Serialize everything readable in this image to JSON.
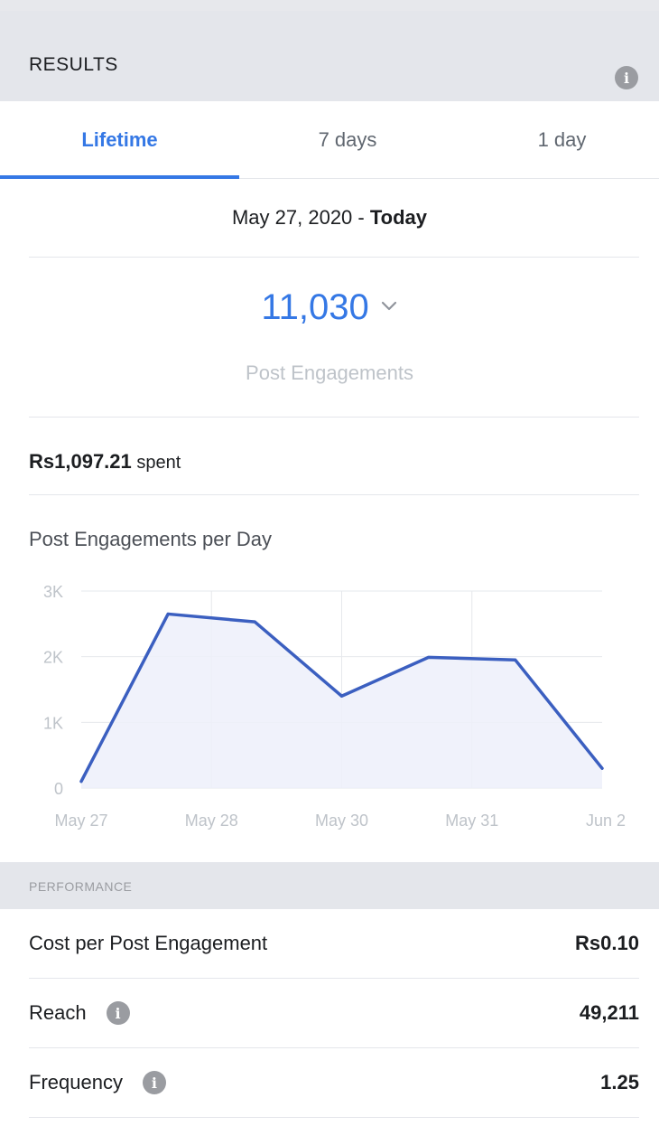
{
  "header": {
    "title": "RESULTS",
    "info_icon": "info-icon"
  },
  "tabs": [
    {
      "label": "Lifetime",
      "active": true
    },
    {
      "label": "7 days",
      "active": false
    },
    {
      "label": "1 day",
      "active": false
    }
  ],
  "date_range": {
    "start": "May 27, 2020",
    "separator": " - ",
    "end": "Today"
  },
  "metric": {
    "value": "11,030",
    "label": "Post Engagements"
  },
  "spent": {
    "amount": "Rs1,097.21",
    "suffix": "spent"
  },
  "chart_title": "Post Engagements per Day",
  "chart_data": {
    "type": "area",
    "x": [
      0,
      1,
      2,
      3,
      4,
      5,
      6
    ],
    "values": [
      100,
      2650,
      2530,
      1400,
      1990,
      1950,
      300
    ],
    "x_tick_labels": [
      {
        "x": 0,
        "label": "May 27"
      },
      {
        "x": 1.5,
        "label": "May 28"
      },
      {
        "x": 3,
        "label": "May 30"
      },
      {
        "x": 4.5,
        "label": "May 31"
      },
      {
        "x": 6,
        "label": "Jun 2"
      }
    ],
    "y_ticks": [
      {
        "value": 0,
        "label": "0"
      },
      {
        "value": 1000,
        "label": "1K"
      },
      {
        "value": 2000,
        "label": "2K"
      },
      {
        "value": 3000,
        "label": "3K"
      }
    ],
    "ylim": [
      0,
      3000
    ],
    "grid": true,
    "line_color": "#3b5fc0",
    "fill_color": "#edf0fa"
  },
  "performance": {
    "title": "PERFORMANCE",
    "rows": [
      {
        "label": "Cost per Post Engagement",
        "value": "Rs0.10",
        "has_info": false
      },
      {
        "label": "Reach",
        "value": "49,211",
        "has_info": true
      },
      {
        "label": "Frequency",
        "value": "1.25",
        "has_info": true
      }
    ]
  },
  "colors": {
    "accent": "#3578e5",
    "background": "#e4e6eb"
  }
}
